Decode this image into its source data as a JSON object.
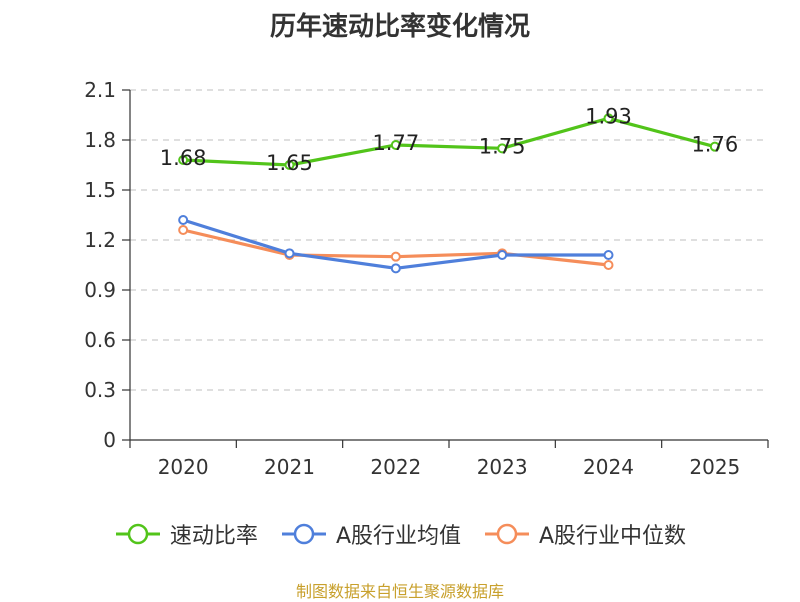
{
  "chart_data": {
    "type": "line",
    "title": "历年速动比率变化情况",
    "categories": [
      "2020",
      "2021",
      "2022",
      "2023",
      "2024",
      "2025"
    ],
    "ylim": [
      0,
      2.1
    ],
    "yticks": [
      "0",
      "0.3",
      "0.6",
      "0.9",
      "1.2",
      "1.5",
      "1.8",
      "2.1"
    ],
    "grid": true,
    "legend_position": "bottom",
    "series": [
      {
        "name": "速动比率",
        "color": "#52c41a",
        "values": [
          1.68,
          1.65,
          1.77,
          1.75,
          1.93,
          1.76
        ],
        "labels": [
          "1.68",
          "1.65",
          "1.77",
          "1.75",
          "1.93",
          "1.76"
        ]
      },
      {
        "name": "A股行业均值",
        "color": "#4f7fdb",
        "values": [
          1.32,
          1.12,
          1.03,
          1.11,
          1.11,
          null
        ]
      },
      {
        "name": "A股行业中位数",
        "color": "#f58d5a",
        "values": [
          1.26,
          1.11,
          1.1,
          1.12,
          1.05,
          null
        ]
      }
    ]
  },
  "footer": {
    "source": "制图数据来自恒生聚源数据库"
  }
}
